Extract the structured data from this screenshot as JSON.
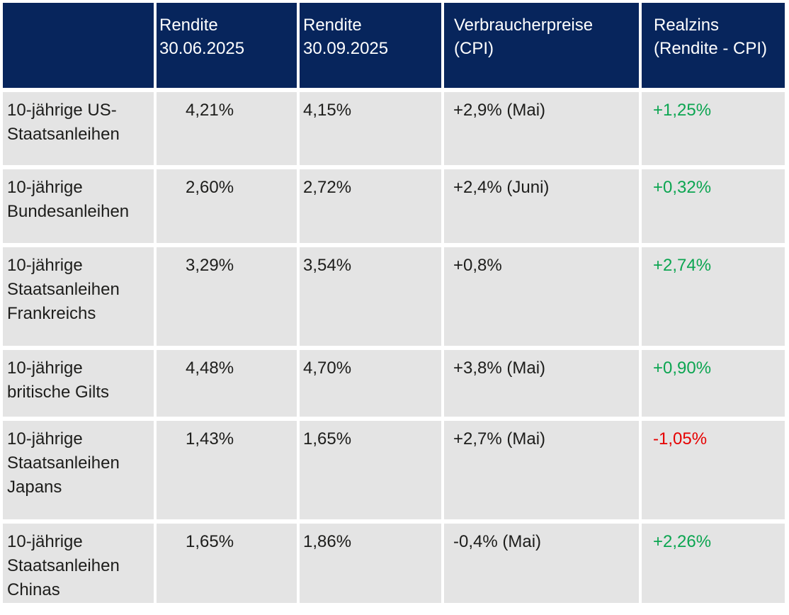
{
  "colors": {
    "header_bg": "#07255c",
    "header_text": "#ffffff",
    "row_bg": "#e4e4e4",
    "body_text": "#1d1d1b",
    "positive": "#0ca551",
    "negative": "#e60000"
  },
  "table": {
    "columns": [
      {
        "label": ""
      },
      {
        "label": "Rendite 30.06.2025"
      },
      {
        "label": "Rendite 30.09.2025"
      },
      {
        "label": "Verbraucherpreise (CPI)"
      },
      {
        "label": "Realzins (Rendite - CPI)"
      }
    ],
    "rows": [
      {
        "label": "10-jährige US-Staatsanleihen",
        "rendite_30_06": "4,21%",
        "rendite_30_09": "4,15%",
        "cpi": "+2,9% (Mai)",
        "realzins": "+1,25%",
        "trend": "positive"
      },
      {
        "label": "10-jährige Bundesanleihen",
        "rendite_30_06": "2,60%",
        "rendite_30_09": "2,72%",
        "cpi": "+2,4% (Juni)",
        "realzins": "+0,32%",
        "trend": "positive"
      },
      {
        "label": "10-jährige Staatsanleihen Frankreichs",
        "rendite_30_06": "3,29%",
        "rendite_30_09": "3,54%",
        "cpi": "+0,8%",
        "realzins": "+2,74%",
        "trend": "positive"
      },
      {
        "label": "10-jährige britische Gilts",
        "rendite_30_06": "4,48%",
        "rendite_30_09": "4,70%",
        "cpi": "+3,8% (Mai)",
        "realzins": "+0,90%",
        "trend": "positive"
      },
      {
        "label": "10-jährige Staatsanleihen Japans",
        "rendite_30_06": "1,43%",
        "rendite_30_09": "1,65%",
        "cpi": "+2,7% (Mai)",
        "realzins": "-1,05%",
        "trend": "negative"
      },
      {
        "label": "10-jährige Staatsanleihen Chinas",
        "rendite_30_06": "1,65%",
        "rendite_30_09": "1,86%",
        "cpi": "-0,4% (Mai)",
        "realzins": "+2,26%",
        "trend": "positive"
      }
    ]
  },
  "chart_data": {
    "type": "table",
    "title": "",
    "columns": [
      "",
      "Rendite 30.06.2025",
      "Rendite 30.09.2025",
      "Verbraucherpreise (CPI)",
      "Realzins (Rendite - CPI)"
    ],
    "rows": [
      [
        "10-jährige US-Staatsanleihen",
        "4,21%",
        "4,15%",
        "+2,9% (Mai)",
        "+1,25%"
      ],
      [
        "10-jährige Bundesanleihen",
        "2,60%",
        "2,72%",
        "+2,4% (Juni)",
        "+0,32%"
      ],
      [
        "10-jährige Staatsanleihen Frankreichs",
        "3,29%",
        "3,54%",
        "+0,8%",
        "+2,74%"
      ],
      [
        "10-jährige britische Gilts",
        "4,48%",
        "4,70%",
        "+3,8% (Mai)",
        "+0,90%"
      ],
      [
        "10-jährige Staatsanleihen Japans",
        "1,43%",
        "1,65%",
        "+2,7% (Mai)",
        "-1,05%"
      ],
      [
        "10-jährige Staatsanleihen Chinas",
        "1,65%",
        "1,86%",
        "-0,4% (Mai)",
        "+2,26%"
      ]
    ],
    "realzins_value_colors": [
      "#0ca551",
      "#0ca551",
      "#0ca551",
      "#0ca551",
      "#e60000",
      "#0ca551"
    ],
    "layout": {
      "header_background": "#07255c",
      "row_background": "#e4e4e4",
      "gridlines": "white gaps between cells"
    }
  }
}
